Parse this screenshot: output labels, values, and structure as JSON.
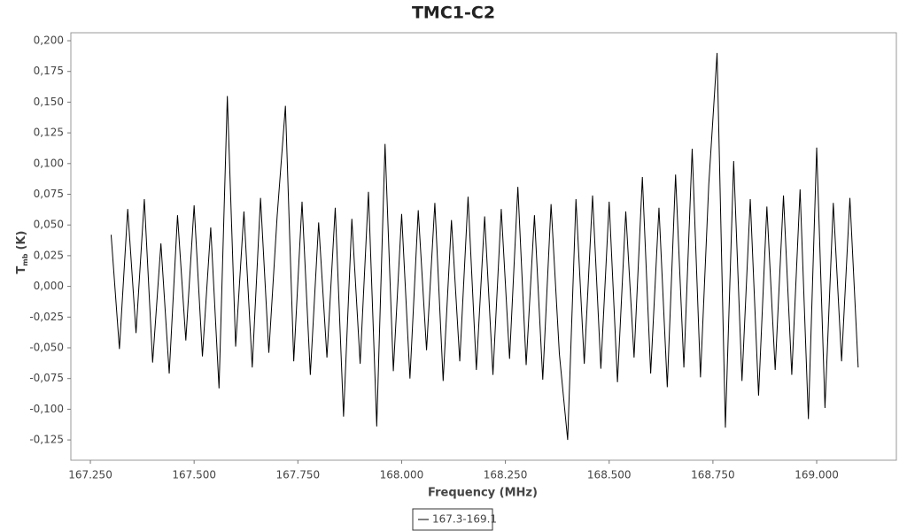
{
  "chart_data": {
    "type": "line",
    "title": "TMC1-C2",
    "x_label": "Frequency (MHz)",
    "y_label_main": "T",
    "y_label_sub": "mb",
    "y_label_unit": "(K)",
    "xlim": [
      167.203,
      169.192
    ],
    "ylim": [
      -0.1415,
      0.2065
    ],
    "xticks": [
      {
        "value": 167.25,
        "label": "167.250"
      },
      {
        "value": 167.5,
        "label": "167.500"
      },
      {
        "value": 167.75,
        "label": "167.750"
      },
      {
        "value": 168.0,
        "label": "168.000"
      },
      {
        "value": 168.25,
        "label": "168.250"
      },
      {
        "value": 168.5,
        "label": "168.500"
      },
      {
        "value": 168.75,
        "label": "168.750"
      },
      {
        "value": 169.0,
        "label": "169.000"
      }
    ],
    "yticks": [
      {
        "value": -0.125,
        "label": "-0,125"
      },
      {
        "value": -0.1,
        "label": "-0,100"
      },
      {
        "value": -0.075,
        "label": "-0,075"
      },
      {
        "value": -0.05,
        "label": "-0,050"
      },
      {
        "value": -0.025,
        "label": "-0,025"
      },
      {
        "value": 0,
        "label": "0,000"
      },
      {
        "value": 0.025,
        "label": "0,025"
      },
      {
        "value": 0.05,
        "label": "0,050"
      },
      {
        "value": 0.075,
        "label": "0,075"
      },
      {
        "value": 0.1,
        "label": "0,100"
      },
      {
        "value": 0.125,
        "label": "0,125"
      },
      {
        "value": 0.15,
        "label": "0,150"
      },
      {
        "value": 0.175,
        "label": "0,175"
      },
      {
        "value": 0.2,
        "label": "0,200"
      }
    ],
    "x": [
      167.3,
      167.32,
      167.34,
      167.36,
      167.38,
      167.4,
      167.42,
      167.44,
      167.46,
      167.48,
      167.5,
      167.52,
      167.54,
      167.56,
      167.58,
      167.6,
      167.62,
      167.64,
      167.66,
      167.68,
      167.7,
      167.72,
      167.74,
      167.76,
      167.78,
      167.8,
      167.82,
      167.84,
      167.86,
      167.88,
      167.9,
      167.92,
      167.94,
      167.96,
      167.98,
      168.0,
      168.02,
      168.04,
      168.06,
      168.08,
      168.1,
      168.12,
      168.14,
      168.16,
      168.18,
      168.2,
      168.22,
      168.24,
      168.26,
      168.28,
      168.3,
      168.32,
      168.34,
      168.36,
      168.38,
      168.4,
      168.42,
      168.44,
      168.46,
      168.48,
      168.5,
      168.52,
      168.54,
      168.56,
      168.58,
      168.6,
      168.62,
      168.64,
      168.66,
      168.68,
      168.7,
      168.72,
      168.74,
      168.76,
      168.78,
      168.8,
      168.82,
      168.84,
      168.86,
      168.88,
      168.9,
      168.92,
      168.94,
      168.96,
      168.98,
      169.0,
      169.02,
      169.04,
      169.06,
      169.08,
      169.1
    ],
    "series": [
      {
        "name": "167.3-169.1",
        "color": "#000000",
        "values": [
          0.042,
          -0.051,
          0.063,
          -0.038,
          0.071,
          -0.062,
          0.035,
          -0.071,
          0.058,
          -0.044,
          0.066,
          -0.057,
          0.048,
          -0.083,
          0.155,
          -0.049,
          0.061,
          -0.066,
          0.072,
          -0.054,
          0.057,
          0.147,
          -0.061,
          0.069,
          -0.072,
          0.052,
          -0.058,
          0.064,
          -0.106,
          0.055,
          -0.063,
          0.077,
          -0.114,
          0.116,
          -0.069,
          0.059,
          -0.075,
          0.062,
          -0.052,
          0.068,
          -0.077,
          0.054,
          -0.061,
          0.073,
          -0.068,
          0.057,
          -0.072,
          0.063,
          -0.059,
          0.081,
          -0.064,
          0.058,
          -0.076,
          0.067,
          -0.055,
          -0.125,
          0.071,
          -0.063,
          0.074,
          -0.067,
          0.069,
          -0.078,
          0.061,
          -0.058,
          0.089,
          -0.071,
          0.064,
          -0.082,
          0.091,
          -0.066,
          0.112,
          -0.074,
          0.083,
          0.19,
          -0.115,
          0.102,
          -0.077,
          0.071,
          -0.089,
          0.065,
          -0.068,
          0.074,
          -0.072,
          0.079,
          -0.108,
          0.113,
          -0.099,
          0.068,
          -0.061,
          0.072,
          -0.066
        ]
      }
    ]
  }
}
